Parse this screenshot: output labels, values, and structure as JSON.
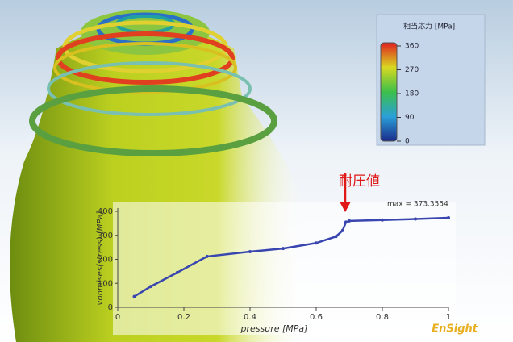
{
  "chart_data": {
    "type": "line",
    "x": [
      0.05,
      0.1,
      0.18,
      0.27,
      0.4,
      0.5,
      0.6,
      0.66,
      0.68,
      0.69,
      0.7,
      0.8,
      0.9,
      1
    ],
    "series": [
      {
        "name": "vonmises(stress)",
        "color": "#3a46b0",
        "values": [
          45,
          87,
          145,
          212,
          232,
          245,
          268,
          295,
          320,
          355,
          360,
          364,
          368,
          373
        ]
      }
    ],
    "xlim": [
      0,
      1
    ],
    "ylim": [
      0,
      400
    ],
    "xticks": [
      0,
      0.2,
      0.4,
      0.6,
      0.8,
      1
    ],
    "yticks": [
      0,
      100,
      200,
      300,
      400
    ],
    "xlabel": "pressure [MPa]",
    "ylabel": "vonmises(stress) [MPa]",
    "annotations": [
      "耐圧値",
      "max = 373.3554"
    ]
  },
  "colorbar": {
    "title": "相当応力 [MPa]",
    "lim": [
      0,
      360
    ],
    "ticks": [
      0,
      90,
      180,
      270,
      360
    ]
  },
  "brand": "EnSight"
}
